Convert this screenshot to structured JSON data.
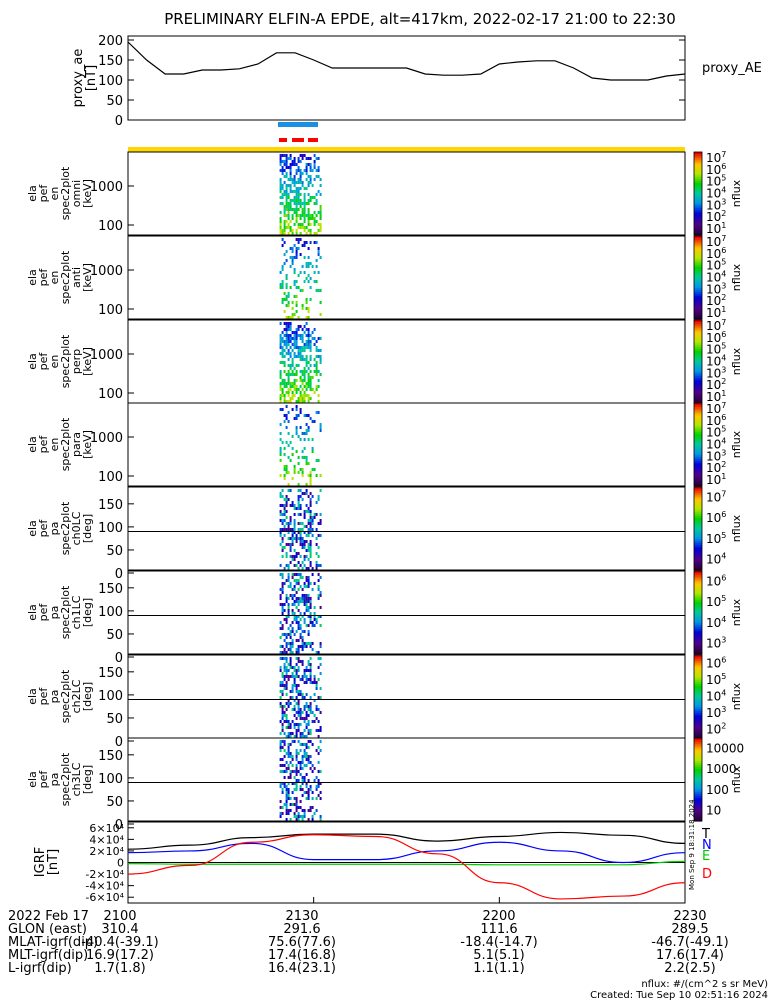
{
  "title": "PRELIMINARY ELFIN-A EPDE, alt=417km, 2022-02-17 21:00 to 22:30",
  "ae_panel": {
    "ylabel": "proxy_ae\n[nT]",
    "legend": "proxy_AE",
    "ticks": [
      "0",
      "50",
      "100",
      "150",
      "200"
    ],
    "ylim": [
      0,
      210
    ]
  },
  "spec_panels": [
    {
      "ylabel": [
        "ela",
        "pef",
        "en",
        "spec2plot",
        "omni",
        "[keV]"
      ],
      "ticks": [
        "100",
        "1000"
      ],
      "cbar_ticks": [
        "10",
        "10",
        "10",
        "10",
        "10",
        "10",
        "10"
      ],
      "cbar_exp": [
        "1",
        "2",
        "3",
        "4",
        "5",
        "6",
        "7"
      ],
      "cbar_label": "nflux"
    },
    {
      "ylabel": [
        "ela",
        "pef",
        "en",
        "spec2plot",
        "anti",
        "[keV]"
      ],
      "ticks": [
        "100",
        "1000"
      ],
      "cbar_ticks": [
        "10",
        "10",
        "10",
        "10",
        "10",
        "10",
        "10"
      ],
      "cbar_exp": [
        "1",
        "2",
        "3",
        "4",
        "5",
        "6",
        "7"
      ],
      "cbar_label": "nflux"
    },
    {
      "ylabel": [
        "ela",
        "pef",
        "en",
        "spec2plot",
        "perp",
        "[keV]"
      ],
      "ticks": [
        "100",
        "1000"
      ],
      "cbar_ticks": [
        "10",
        "10",
        "10",
        "10",
        "10",
        "10",
        "10"
      ],
      "cbar_exp": [
        "1",
        "2",
        "3",
        "4",
        "5",
        "6",
        "7"
      ],
      "cbar_label": "nflux"
    },
    {
      "ylabel": [
        "ela",
        "pef",
        "en",
        "spec2plot",
        "para",
        "[keV]"
      ],
      "ticks": [
        "100",
        "1000"
      ],
      "cbar_ticks": [
        "10",
        "10",
        "10",
        "10",
        "10",
        "10",
        "10"
      ],
      "cbar_exp": [
        "1",
        "2",
        "3",
        "4",
        "5",
        "6",
        "7"
      ],
      "cbar_label": "nflux"
    }
  ],
  "pa_panels": [
    {
      "ylabel": [
        "ela",
        "pef",
        "pa",
        "spec2plot",
        "ch0LC",
        "[deg]"
      ],
      "ticks": [
        "0",
        "50",
        "100",
        "150"
      ],
      "cbar_ticks": [
        "10",
        "10",
        "10",
        "10"
      ],
      "cbar_exp": [
        "4",
        "5",
        "6",
        "7"
      ],
      "cbar_label": "nflux"
    },
    {
      "ylabel": [
        "ela",
        "pef",
        "pa",
        "spec2plot",
        "ch1LC",
        "[deg]"
      ],
      "ticks": [
        "0",
        "50",
        "100",
        "150"
      ],
      "cbar_ticks": [
        "10",
        "10",
        "10",
        "10"
      ],
      "cbar_exp": [
        "3",
        "4",
        "5",
        "6"
      ],
      "cbar_label": "nflux"
    },
    {
      "ylabel": [
        "ela",
        "pef",
        "pa",
        "spec2plot",
        "ch2LC",
        "[deg]"
      ],
      "ticks": [
        "0",
        "50",
        "100",
        "150"
      ],
      "cbar_ticks": [
        "10",
        "10",
        "10",
        "10",
        "10"
      ],
      "cbar_exp": [
        "2",
        "3",
        "4",
        "5",
        "6"
      ],
      "cbar_label": "nflux"
    },
    {
      "ylabel": [
        "ela",
        "pef",
        "pa",
        "spec2plot",
        "ch3LC",
        "[deg]"
      ],
      "ticks": [
        "0",
        "50",
        "100",
        "150"
      ],
      "cbar_ticks": [
        "10",
        "100",
        "1000",
        "10000"
      ],
      "cbar_exp": [
        "",
        "",
        "",
        ""
      ],
      "cbar_label": "nflux"
    }
  ],
  "igrf_panel": {
    "ylabel": "IGRF\n[nT]",
    "ticks": [
      "-6×10⁴",
      "-4×10⁴",
      "-2×10⁴",
      "0",
      "2×10⁴",
      "4×10⁴",
      "6×10⁴"
    ],
    "legend": [
      "T",
      "N",
      "E",
      "D"
    ],
    "legend_colors": [
      "#000000",
      "#0000ff",
      "#00cc00",
      "#ff0000"
    ],
    "stamp": "Mon Sep 9 18:31:18 2024"
  },
  "x_axis": {
    "ticks": [
      "2100",
      "2130",
      "2200",
      "2230"
    ]
  },
  "ephemeris": {
    "rows": [
      {
        "label": "2022 Feb 17",
        "values": [
          "2100",
          "2130",
          "2200",
          "2230"
        ]
      },
      {
        "label": "GLON (east)",
        "values": [
          "310.4",
          "291.6",
          "111.6",
          "289.5"
        ]
      },
      {
        "label": "MLAT-igrf(dip)",
        "values": [
          "-40.4(-39.1)",
          "75.6(77.6)",
          "-18.4(-14.7)",
          "-46.7(-49.1)"
        ]
      },
      {
        "label": "MLT-igrf(dip)",
        "values": [
          "16.9(17.2)",
          "17.4(16.8)",
          "5.1(5.1)",
          "17.6(17.4)"
        ]
      },
      {
        "label": "L-igrf(dip)",
        "values": [
          "1.7(1.8)",
          "16.4(23.1)",
          "1.1(1.1)",
          "2.2(2.5)"
        ]
      }
    ]
  },
  "footer": {
    "units": "nflux: #/(cm^2 s sr MeV)",
    "created": "Created: Tue Sep 10 02:51:16 2024"
  },
  "chart_data": [
    {
      "type": "line",
      "name": "proxy_AE",
      "x": [
        0,
        3,
        6,
        9,
        12,
        15,
        18,
        21,
        24,
        27,
        30,
        33,
        36,
        39,
        42,
        45,
        48,
        51,
        54,
        57,
        60,
        63,
        66,
        69,
        72,
        75,
        78,
        81,
        84,
        87,
        90
      ],
      "values": [
        195,
        150,
        115,
        115,
        125,
        125,
        128,
        140,
        168,
        168,
        150,
        130,
        130,
        130,
        130,
        130,
        115,
        112,
        112,
        115,
        140,
        145,
        148,
        148,
        130,
        105,
        100,
        100,
        100,
        110,
        115
      ],
      "xlabel": "",
      "ylabel": "proxy_ae [nT]",
      "ylim": [
        0,
        210
      ]
    },
    {
      "type": "heatmap",
      "description_only": false,
      "x_range_min": [
        24,
        30
      ],
      "panels": [
        "omni",
        "anti",
        "perp",
        "para",
        "ch0LC",
        "ch1LC",
        "ch2LC",
        "ch3LC"
      ]
    },
    {
      "type": "line",
      "series": [
        {
          "name": "T",
          "x": [
            0,
            10,
            20,
            30,
            40,
            50,
            60,
            70,
            80,
            90
          ],
          "values": [
            23000,
            30000,
            43000,
            49000,
            49000,
            37000,
            45000,
            52000,
            47000,
            33000
          ]
        },
        {
          "name": "N",
          "x": [
            0,
            10,
            20,
            30,
            40,
            50,
            60,
            70,
            80,
            90
          ],
          "values": [
            17000,
            20000,
            33000,
            5000,
            5000,
            20000,
            35000,
            20000,
            0,
            17000
          ]
        },
        {
          "name": "E",
          "x": [
            0,
            10,
            20,
            30,
            40,
            50,
            60,
            70,
            80,
            90
          ],
          "values": [
            -2000,
            -3000,
            -3000,
            -3000,
            -3000,
            -3000,
            -4000,
            -4000,
            -4000,
            2000
          ]
        },
        {
          "name": "D",
          "x": [
            0,
            10,
            20,
            30,
            40,
            50,
            60,
            70,
            80,
            90
          ],
          "values": [
            -20000,
            -5000,
            35000,
            48000,
            45000,
            15000,
            -35000,
            -63000,
            -58000,
            -35000
          ]
        }
      ],
      "ylabel": "IGRF [nT]",
      "ylim": [
        -70000,
        70000
      ]
    }
  ]
}
